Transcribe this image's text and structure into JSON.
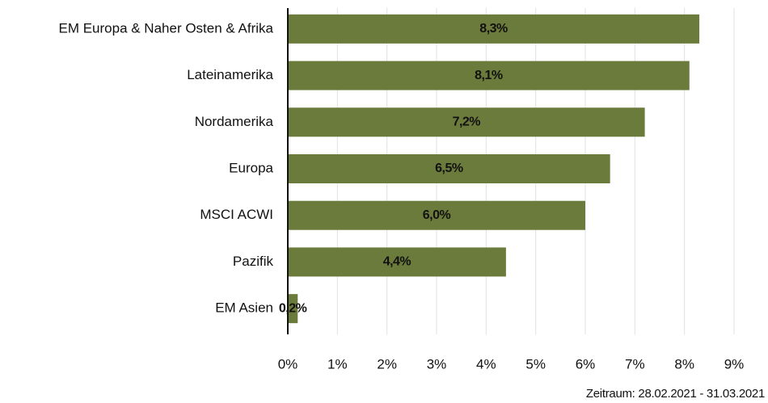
{
  "chart_data": {
    "type": "bar",
    "orientation": "horizontal",
    "categories": [
      "EM Europa & Naher Osten & Afrika",
      "Lateinamerika",
      "Nordamerika",
      "Europa",
      "MSCI ACWI",
      "Pazifik",
      "EM Asien"
    ],
    "values": [
      8.3,
      8.1,
      7.2,
      6.5,
      6.0,
      4.4,
      0.2
    ],
    "value_labels": [
      "8,3%",
      "8,1%",
      "7,2%",
      "6,5%",
      "6,0%",
      "4,4%",
      "0,2%"
    ],
    "color": "#6b7b3b",
    "xlim": [
      0,
      9
    ],
    "xticks": [
      {
        "value": 0,
        "label": "0%"
      },
      {
        "value": 1,
        "label": "1%"
      },
      {
        "value": 2,
        "label": "2%"
      },
      {
        "value": 3,
        "label": "3%"
      },
      {
        "value": 4,
        "label": "4%"
      },
      {
        "value": 5,
        "label": "5%"
      },
      {
        "value": 6,
        "label": "6%"
      },
      {
        "value": 7,
        "label": "7%"
      },
      {
        "value": 8,
        "label": "8%"
      },
      {
        "value": 9,
        "label": "9%"
      }
    ],
    "grid": true,
    "note": "Zeitraum: 28.02.2021 - 31.03.2021"
  }
}
